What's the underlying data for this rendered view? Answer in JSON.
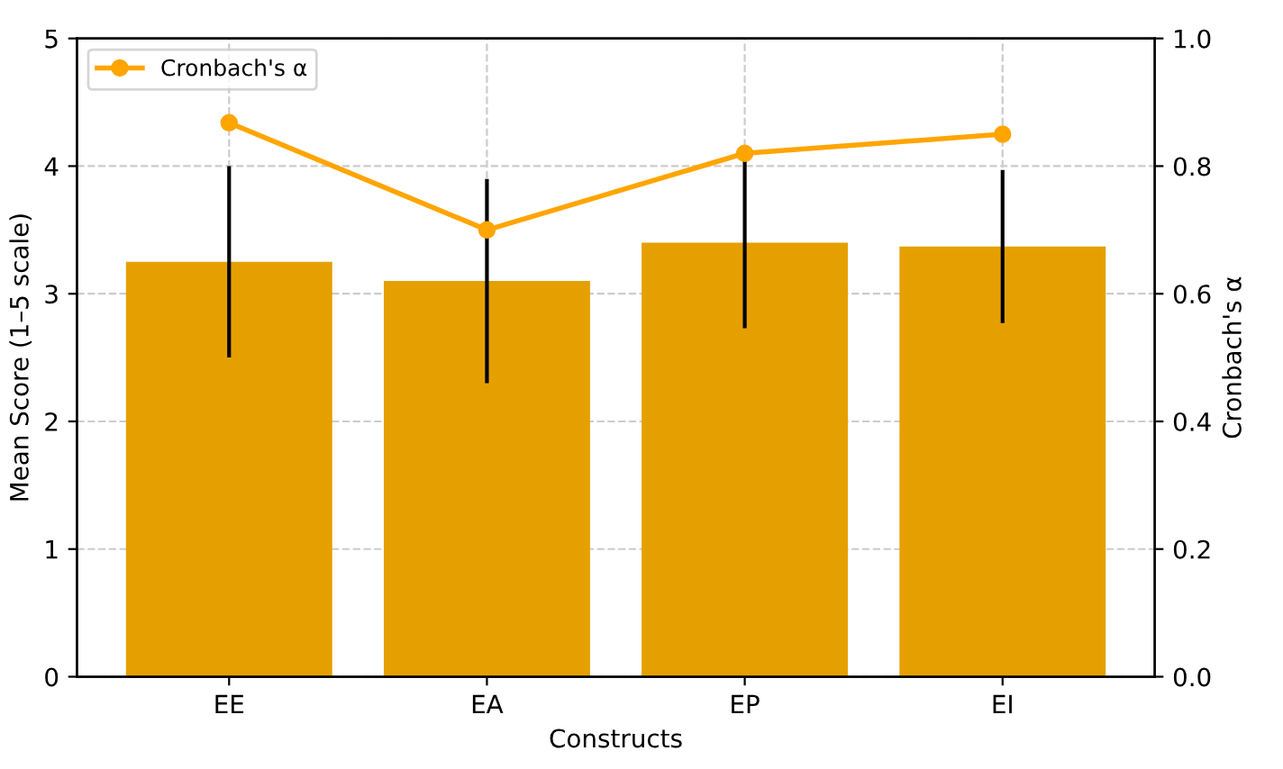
{
  "chart_data": {
    "type": "bar",
    "categories": [
      "EE",
      "EA",
      "EP",
      "EI"
    ],
    "xlabel": "Constructs",
    "ylabel": "Mean Score (1–5 scale)",
    "y2label": "Cronbach's α",
    "ylim": [
      0,
      5
    ],
    "yticks": [
      0,
      1,
      2,
      3,
      4,
      5
    ],
    "y2lim": [
      0.0,
      1.0
    ],
    "y2ticks": [
      {
        "value": 0,
        "label": "0.0"
      },
      {
        "value": 0.2,
        "label": "0.2"
      },
      {
        "value": 0.4,
        "label": "0.4"
      },
      {
        "value": 0.6,
        "label": "0.6"
      },
      {
        "value": 0.8,
        "label": "0.8"
      },
      {
        "value": 1.0,
        "label": "1.0"
      }
    ],
    "grid": true,
    "legend": "top left",
    "series": [
      {
        "color": "#e5a000",
        "values": [
          3.25,
          3.1,
          3.4,
          3.37
        ],
        "errors": [
          0.75,
          0.8,
          0.67,
          0.6
        ]
      },
      {
        "type": "line",
        "name": "Cronbach's α",
        "axis": "y2",
        "color": "#ffa500",
        "marker": "circle",
        "line_style": "solid",
        "values": [
          0.868,
          0.7,
          0.82,
          0.85
        ]
      }
    ]
  }
}
